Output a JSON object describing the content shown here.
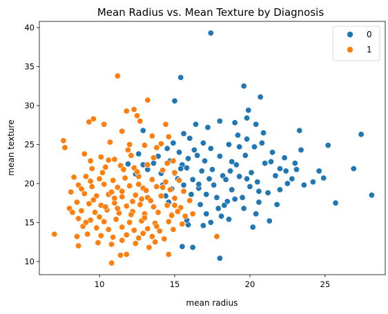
{
  "chart_data": {
    "type": "scatter",
    "title": "Mean Radius vs. Mean Texture by Diagnosis",
    "xlabel": "mean radius",
    "ylabel": "mean texture",
    "xlim": [
      6.0,
      29.0
    ],
    "ylim": [
      8.3,
      40.8
    ],
    "x_ticks": [
      10,
      15,
      20,
      25
    ],
    "y_ticks": [
      10,
      15,
      20,
      25,
      30,
      35,
      40
    ],
    "grid": false,
    "legend_position": "top-right",
    "series": [
      {
        "name": "0",
        "color": "#1f77b4",
        "points": [
          [
            17.4,
            39.3
          ],
          [
            19.6,
            32.5
          ],
          [
            15.4,
            33.6
          ],
          [
            20.7,
            31.1
          ],
          [
            15.0,
            30.6
          ],
          [
            23.3,
            26.8
          ],
          [
            27.4,
            26.3
          ],
          [
            25.2,
            24.9
          ],
          [
            26.9,
            21.9
          ],
          [
            28.1,
            18.5
          ],
          [
            25.7,
            17.5
          ],
          [
            24.6,
            21.6
          ],
          [
            23.4,
            24.3
          ],
          [
            23.1,
            21.8
          ],
          [
            24.2,
            20.2
          ],
          [
            22.5,
            20.0
          ],
          [
            21.8,
            17.3
          ],
          [
            22.0,
            21.9
          ],
          [
            21.4,
            22.8
          ],
          [
            21.3,
            15.2
          ],
          [
            20.6,
            17.6
          ],
          [
            20.2,
            14.4
          ],
          [
            18.0,
            10.4
          ],
          [
            16.2,
            11.8
          ],
          [
            15.5,
            11.9
          ],
          [
            15.9,
            14.7
          ],
          [
            17.4,
            15.0
          ],
          [
            17.1,
            16.1
          ],
          [
            18.1,
            15.8
          ],
          [
            18.5,
            17.7
          ],
          [
            19.0,
            18.0
          ],
          [
            19.5,
            18.2
          ],
          [
            20.0,
            19.6
          ],
          [
            20.5,
            20.2
          ],
          [
            21.0,
            22.6
          ],
          [
            20.9,
            26.5
          ],
          [
            20.4,
            27.6
          ],
          [
            19.8,
            28.4
          ],
          [
            19.2,
            26.2
          ],
          [
            18.6,
            25.0
          ],
          [
            18.0,
            23.5
          ],
          [
            17.4,
            24.5
          ],
          [
            16.9,
            25.2
          ],
          [
            16.3,
            24.3
          ],
          [
            15.9,
            23.2
          ],
          [
            15.5,
            22.4
          ],
          [
            15.0,
            21.3
          ],
          [
            14.7,
            22.9
          ],
          [
            14.5,
            24.5
          ],
          [
            14.9,
            25.2
          ],
          [
            15.3,
            24.0
          ],
          [
            15.8,
            22.0
          ],
          [
            16.2,
            20.5
          ],
          [
            16.6,
            19.4
          ],
          [
            17.1,
            18.6
          ],
          [
            17.6,
            19.8
          ],
          [
            18.2,
            21.0
          ],
          [
            18.7,
            21.6
          ],
          [
            19.1,
            22.4
          ],
          [
            19.7,
            23.6
          ],
          [
            20.3,
            24.7
          ],
          [
            20.8,
            25.2
          ],
          [
            21.5,
            24.0
          ],
          [
            22.3,
            23.3
          ],
          [
            23.0,
            22.6
          ],
          [
            22.8,
            20.6
          ],
          [
            22.0,
            19.2
          ],
          [
            21.2,
            18.8
          ],
          [
            20.6,
            19.0
          ],
          [
            19.8,
            20.6
          ],
          [
            19.3,
            20.9
          ],
          [
            18.8,
            19.2
          ],
          [
            18.3,
            17.2
          ],
          [
            17.8,
            18.2
          ],
          [
            17.3,
            20.6
          ],
          [
            16.8,
            21.6
          ],
          [
            16.5,
            23.6
          ],
          [
            16.0,
            25.8
          ],
          [
            15.6,
            26.4
          ],
          [
            16.4,
            27.6
          ],
          [
            17.2,
            27.2
          ],
          [
            18.0,
            28.0
          ],
          [
            19.0,
            27.8
          ],
          [
            19.9,
            29.4
          ],
          [
            18.8,
            22.8
          ],
          [
            18.4,
            20.5
          ],
          [
            17.9,
            16.8
          ],
          [
            17.5,
            21.8
          ],
          [
            16.7,
            17.3
          ],
          [
            16.1,
            18.6
          ],
          [
            15.6,
            19.8
          ],
          [
            15.2,
            20.6
          ],
          [
            14.8,
            19.3
          ],
          [
            14.4,
            18.4
          ],
          [
            14.1,
            21.3
          ],
          [
            13.9,
            23.5
          ],
          [
            13.6,
            22.6
          ],
          [
            13.2,
            21.8
          ],
          [
            12.9,
            22.4
          ],
          [
            12.6,
            23.8
          ],
          [
            12.9,
            26.8
          ],
          [
            11.9,
            22.5
          ],
          [
            12.4,
            21.2
          ],
          [
            14.6,
            17.6
          ],
          [
            15.8,
            15.3
          ],
          [
            16.9,
            14.6
          ],
          [
            19.3,
            24.7
          ],
          [
            19.8,
            25.7
          ],
          [
            20.1,
            21.4
          ],
          [
            21.7,
            21.0
          ],
          [
            22.4,
            21.6
          ],
          [
            24.9,
            20.7
          ],
          [
            23.6,
            19.8
          ],
          [
            20.4,
            16.1
          ],
          [
            19.6,
            16.8
          ],
          [
            18.6,
            15.4
          ],
          [
            16.6,
            19.9
          ],
          [
            17.0,
            22.9
          ],
          [
            15.4,
            21.9
          ],
          [
            14.2,
            19.8
          ]
        ]
      },
      {
        "name": "1",
        "color": "#ff7f0e",
        "points": [
          [
            11.2,
            33.8
          ],
          [
            13.2,
            30.7
          ],
          [
            12.3,
            29.5
          ],
          [
            12.5,
            28.7
          ],
          [
            11.8,
            29.3
          ],
          [
            9.6,
            28.3
          ],
          [
            9.3,
            27.9
          ],
          [
            10.3,
            27.6
          ],
          [
            12.7,
            28.0
          ],
          [
            14.4,
            27.6
          ],
          [
            11.5,
            26.7
          ],
          [
            13.5,
            26.1
          ],
          [
            14.6,
            26.0
          ],
          [
            7.6,
            25.5
          ],
          [
            7.7,
            24.6
          ],
          [
            10.7,
            25.3
          ],
          [
            12.0,
            25.0
          ],
          [
            13.0,
            24.9
          ],
          [
            14.1,
            25.1
          ],
          [
            9.0,
            23.8
          ],
          [
            10.1,
            23.4
          ],
          [
            11.0,
            23.1
          ],
          [
            12.1,
            23.6
          ],
          [
            13.6,
            23.3
          ],
          [
            14.5,
            22.6
          ],
          [
            9.5,
            21.9
          ],
          [
            10.4,
            22.1
          ],
          [
            11.4,
            22.3
          ],
          [
            12.3,
            22.0
          ],
          [
            13.2,
            22.4
          ],
          [
            14.2,
            21.7
          ],
          [
            15.0,
            21.4
          ],
          [
            8.3,
            20.8
          ],
          [
            9.1,
            20.9
          ],
          [
            10.0,
            20.6
          ],
          [
            10.9,
            20.4
          ],
          [
            11.7,
            20.7
          ],
          [
            12.6,
            20.9
          ],
          [
            13.5,
            20.5
          ],
          [
            14.4,
            20.2
          ],
          [
            15.3,
            20.4
          ],
          [
            8.6,
            19.8
          ],
          [
            9.5,
            19.6
          ],
          [
            10.3,
            19.9
          ],
          [
            11.2,
            19.5
          ],
          [
            12.0,
            19.7
          ],
          [
            12.9,
            19.4
          ],
          [
            13.8,
            19.6
          ],
          [
            14.7,
            19.2
          ],
          [
            15.6,
            19.0
          ],
          [
            8.1,
            18.9
          ],
          [
            9.0,
            18.7
          ],
          [
            9.8,
            18.4
          ],
          [
            10.6,
            18.6
          ],
          [
            11.5,
            18.3
          ],
          [
            12.4,
            18.5
          ],
          [
            13.2,
            18.2
          ],
          [
            14.1,
            18.4
          ],
          [
            15.0,
            18.1
          ],
          [
            16.0,
            17.8
          ],
          [
            8.5,
            17.6
          ],
          [
            9.3,
            17.4
          ],
          [
            10.1,
            17.2
          ],
          [
            11.0,
            17.5
          ],
          [
            11.8,
            17.1
          ],
          [
            12.7,
            17.3
          ],
          [
            13.6,
            17.0
          ],
          [
            14.5,
            17.2
          ],
          [
            15.4,
            16.9
          ],
          [
            8.0,
            16.8
          ],
          [
            8.8,
            16.5
          ],
          [
            9.7,
            16.3
          ],
          [
            10.5,
            16.6
          ],
          [
            11.3,
            16.2
          ],
          [
            12.2,
            16.4
          ],
          [
            13.0,
            16.1
          ],
          [
            13.9,
            16.3
          ],
          [
            14.8,
            16.0
          ],
          [
            15.7,
            15.8
          ],
          [
            8.6,
            15.5
          ],
          [
            9.4,
            15.3
          ],
          [
            10.3,
            15.1
          ],
          [
            11.1,
            15.4
          ],
          [
            12.0,
            15.0
          ],
          [
            12.8,
            15.2
          ],
          [
            13.7,
            14.9
          ],
          [
            14.6,
            15.1
          ],
          [
            15.5,
            14.8
          ],
          [
            8.9,
            14.5
          ],
          [
            9.8,
            14.3
          ],
          [
            10.6,
            14.1
          ],
          [
            11.5,
            14.4
          ],
          [
            12.3,
            14.0
          ],
          [
            13.2,
            14.2
          ],
          [
            14.0,
            13.9
          ],
          [
            14.9,
            14.1
          ],
          [
            9.2,
            13.5
          ],
          [
            10.1,
            13.3
          ],
          [
            10.9,
            13.1
          ],
          [
            11.8,
            13.4
          ],
          [
            12.6,
            13.0
          ],
          [
            13.5,
            13.2
          ],
          [
            14.3,
            12.9
          ],
          [
            7.0,
            13.5
          ],
          [
            8.5,
            13.2
          ],
          [
            9.9,
            12.4
          ],
          [
            11.5,
            12.7
          ],
          [
            12.4,
            12.3
          ],
          [
            13.7,
            12.5
          ],
          [
            8.6,
            12.0
          ],
          [
            10.8,
            12.2
          ],
          [
            10.8,
            9.8
          ],
          [
            11.4,
            10.8
          ],
          [
            11.8,
            10.9
          ],
          [
            13.3,
            11.8
          ],
          [
            14.6,
            10.9
          ],
          [
            17.8,
            13.2
          ],
          [
            15.0,
            17.2
          ],
          [
            16.2,
            16.1
          ],
          [
            9.4,
            22.9
          ],
          [
            10.2,
            21.4
          ],
          [
            11.6,
            21.8
          ],
          [
            12.6,
            19.9
          ],
          [
            13.4,
            17.8
          ],
          [
            14.8,
            15.9
          ],
          [
            9.6,
            17.9
          ],
          [
            10.8,
            18.9
          ],
          [
            11.2,
            16.8
          ],
          [
            12.1,
            16.0
          ],
          [
            13.0,
            15.6
          ],
          [
            12.2,
            17.7
          ],
          [
            11.0,
            18.1
          ],
          [
            10.0,
            15.7
          ],
          [
            13.8,
            14.5
          ],
          [
            12.9,
            13.6
          ],
          [
            8.2,
            16.3
          ],
          [
            8.8,
            19.3
          ],
          [
            9.4,
            20.3
          ],
          [
            10.6,
            23.0
          ],
          [
            11.9,
            24.3
          ],
          [
            13.8,
            24.6
          ],
          [
            14.9,
            22.9
          ],
          [
            9.1,
            15.0
          ],
          [
            15.2,
            16.4
          ],
          [
            12.5,
            21.5
          ],
          [
            13.1,
            19.1
          ],
          [
            11.5,
            19.0
          ],
          [
            10.4,
            17.0
          ],
          [
            14.2,
            19.5
          ],
          [
            12.8,
            18.0
          ]
        ]
      }
    ]
  }
}
